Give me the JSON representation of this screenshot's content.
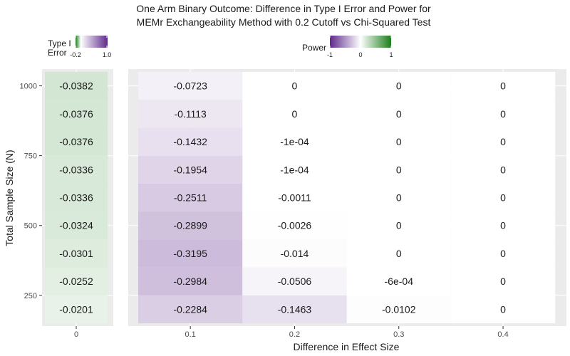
{
  "chart_data": {
    "type": "heatmap",
    "title": [
      "One Arm Binary Outcome: Difference in Type I Error and Power for",
      "MEMr Exchangeability Method with 0.2 Cutoff vs Chi-Squared Test"
    ],
    "xlabel": "Difference in Effect Size",
    "ylabel": "Total Sample Size (N)",
    "grid": true,
    "y_scale": {
      "ylim": [
        140,
        1060
      ],
      "tick_values": [
        250,
        500,
        750,
        1000
      ],
      "tick_labels": [
        "250",
        "500",
        "750",
        "1000"
      ]
    },
    "rows_N": [
      200,
      300,
      400,
      500,
      600,
      700,
      800,
      900,
      1000
    ],
    "type1_panel": {
      "x_tick_labels": [
        "0"
      ],
      "x_values": [
        0
      ],
      "values": [
        -0.0201,
        -0.0252,
        -0.0301,
        -0.0324,
        -0.0336,
        -0.0336,
        -0.0376,
        -0.0376,
        -0.0382
      ],
      "labels": [
        "-0.0201",
        "-0.0252",
        "-0.0301",
        "-0.0324",
        "-0.0336",
        "-0.0336",
        "-0.0376",
        "-0.0376",
        "-0.0382"
      ]
    },
    "power_panel": {
      "x_tick_labels": [
        "0.1",
        "0.2",
        "0.3",
        "0.4"
      ],
      "x_values": [
        0.1,
        0.2,
        0.3,
        0.4
      ],
      "columns": [
        {
          "values": [
            -0.2284,
            -0.2984,
            -0.3195,
            -0.2899,
            -0.2511,
            -0.1954,
            -0.1432,
            -0.1113,
            -0.0723
          ],
          "labels": [
            "-0.2284",
            "-0.2984",
            "-0.3195",
            "-0.2899",
            "-0.2511",
            "-0.1954",
            "-0.1432",
            "-0.1113",
            "-0.0723"
          ]
        },
        {
          "values": [
            -0.1463,
            -0.0506,
            -0.014,
            -0.0026,
            -0.0011,
            -0.0001,
            -0.0001,
            0,
            0
          ],
          "labels": [
            "-0.1463",
            "-0.0506",
            "-0.014",
            "-0.0026",
            "-0.0011",
            "-1e-04",
            "-1e-04",
            "0",
            "0"
          ]
        },
        {
          "values": [
            -0.0102,
            -0.0006,
            0,
            0,
            0,
            0,
            0,
            0,
            0
          ],
          "labels": [
            "-0.0102",
            "-6e-04",
            "0",
            "0",
            "0",
            "0",
            "0",
            "0",
            "0"
          ]
        },
        {
          "values": [
            0,
            0,
            0,
            0,
            0,
            0,
            0,
            0,
            0
          ],
          "labels": [
            "0",
            "0",
            "0",
            "0",
            "0",
            "0",
            "0",
            "0",
            "0"
          ]
        }
      ]
    },
    "legends": {
      "type1": {
        "title": [
          "Type I",
          "Error"
        ],
        "range": [
          -0.2,
          1.0
        ],
        "tick_labels": [
          "-0.2",
          "1.0"
        ],
        "low_color": "#1b7e1b",
        "mid_color": "#ffffff",
        "high_color": "#5e2a8a"
      },
      "power": {
        "title": "Power",
        "range": [
          -1,
          1
        ],
        "tick_labels": [
          "-1",
          "0",
          "1"
        ],
        "low_color": "#5e2a8a",
        "mid_color": "#ffffff",
        "high_color": "#1b7e1b"
      }
    },
    "colors": {
      "panel_bg": "#ebebeb",
      "grid": "#ffffff",
      "text": "#1a1a1a",
      "axis_text": "#4d4d4d"
    }
  }
}
